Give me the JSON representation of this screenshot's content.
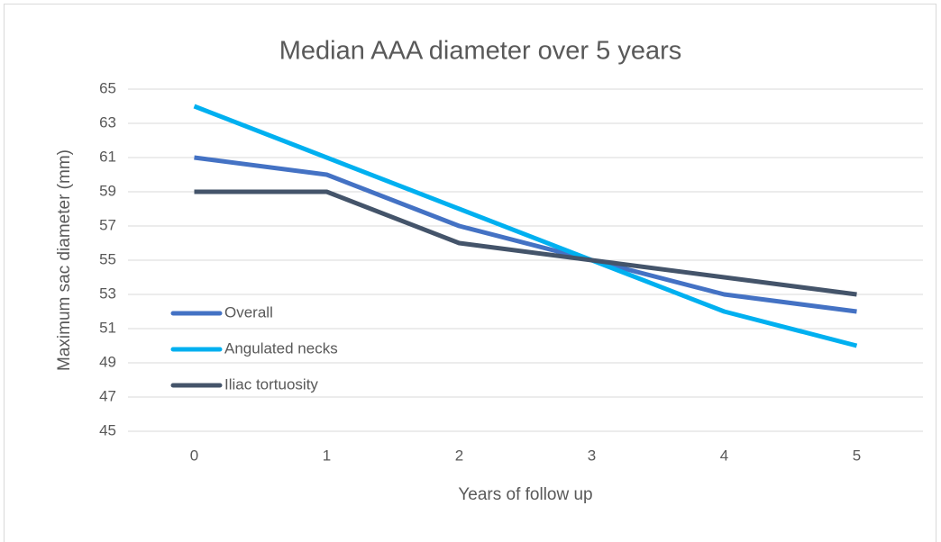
{
  "chart_data": {
    "type": "line",
    "title": "Median AAA diameter over 5 years",
    "x_label": "Years of follow up",
    "y_label": "Maximum sac diameter (mm)",
    "categories": [
      "0",
      "1",
      "2",
      "3",
      "4",
      "5"
    ],
    "series": [
      {
        "name": "Overall",
        "color": "#4472c4",
        "values": [
          61,
          60,
          57,
          55,
          53,
          52
        ]
      },
      {
        "name": "Angulated necks",
        "color": "#00b0f0",
        "values": [
          64,
          61,
          58,
          55,
          52,
          50
        ]
      },
      {
        "name": "Iliac tortuosity",
        "color": "#44546a",
        "values": [
          59,
          59,
          56,
          55,
          54,
          53
        ]
      }
    ],
    "ylim": [
      45,
      65
    ],
    "yticks": [
      45,
      47,
      49,
      51,
      53,
      55,
      57,
      59,
      61,
      63,
      65
    ],
    "grid": true
  }
}
